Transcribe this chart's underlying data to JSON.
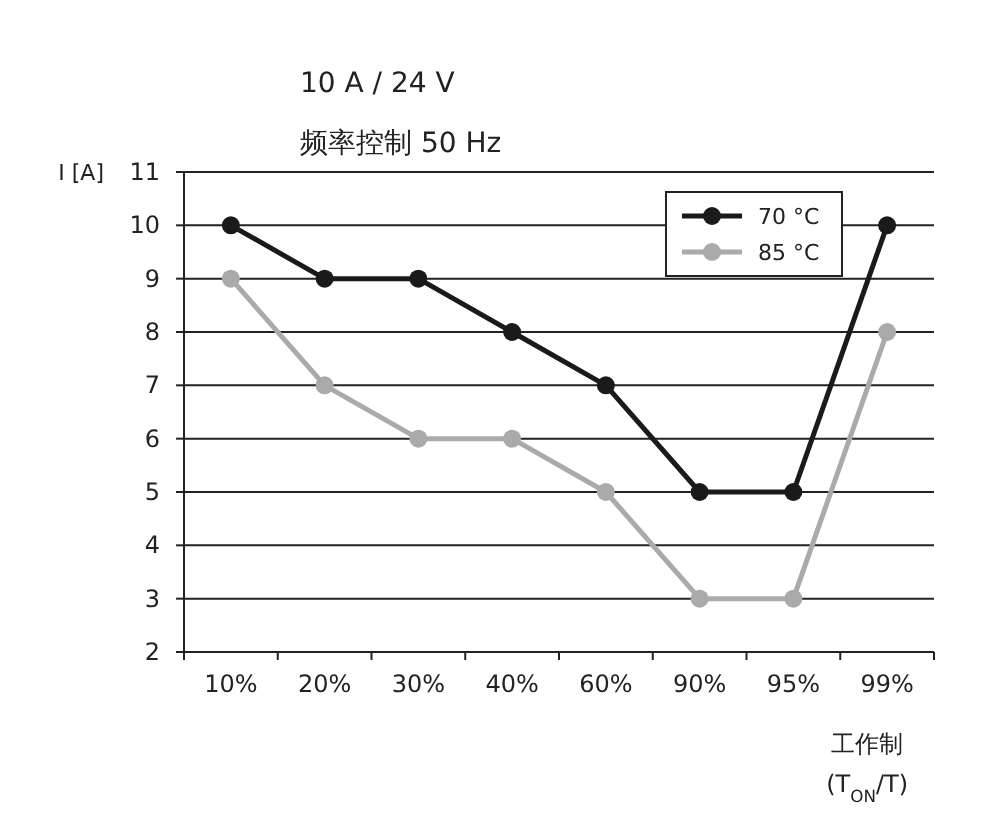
{
  "chart_data": {
    "type": "line",
    "title": "10 A / 24 V",
    "subtitle": "频率控制 50 Hz",
    "ylabel": "I [A]",
    "xlabel": "工作制 (T$_{ON}$/T)",
    "categories": [
      "10%",
      "20%",
      "30%",
      "40%",
      "60%",
      "90%",
      "95%",
      "99%"
    ],
    "series": [
      {
        "name": "70 °C",
        "color": "#1a1a1a",
        "values": [
          10,
          9,
          9,
          8,
          7,
          5,
          5,
          10
        ]
      },
      {
        "name": "85 °C",
        "color": "#aaaaaa",
        "values": [
          9,
          7,
          6,
          6,
          5,
          3,
          3,
          8
        ]
      }
    ],
    "ylim": [
      2,
      11
    ],
    "yticks": [
      2,
      3,
      4,
      5,
      6,
      7,
      8,
      9,
      10,
      11
    ],
    "grid": "y",
    "legend": "top right",
    "marker": "circle",
    "line_style": "solid"
  }
}
